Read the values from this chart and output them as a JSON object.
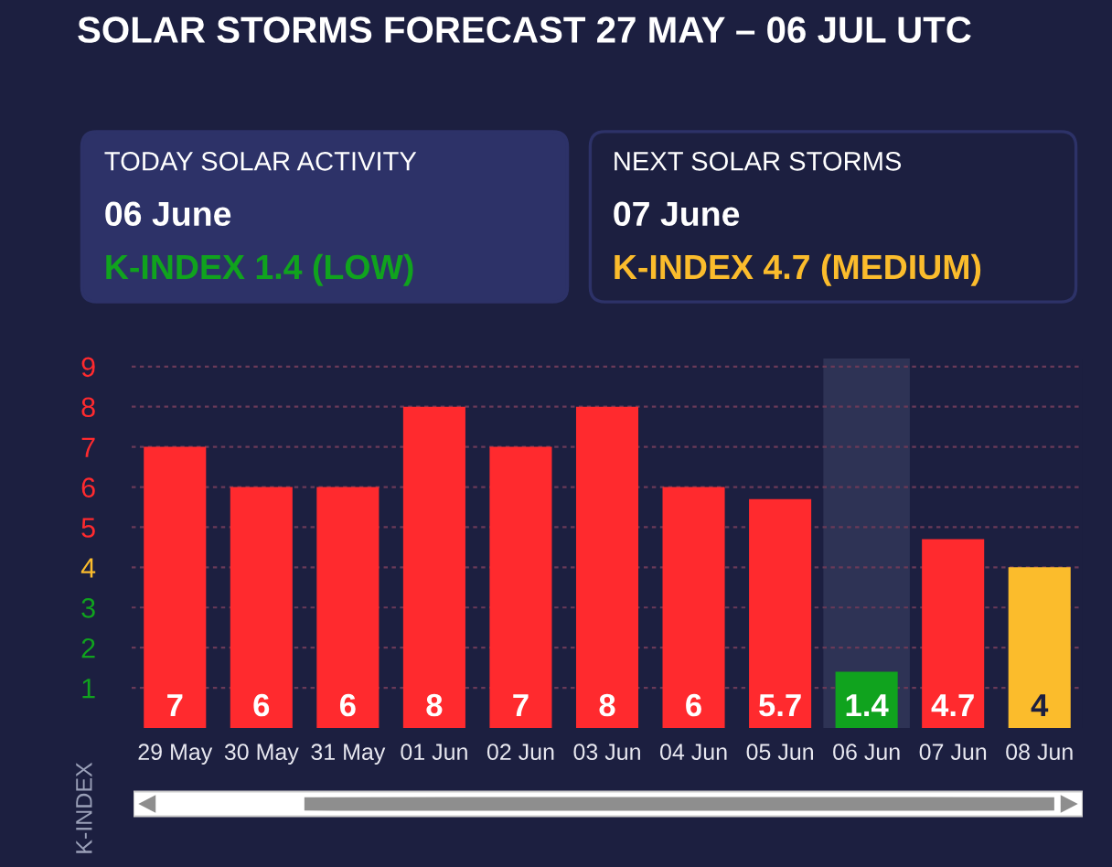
{
  "chart_data": [
    {
      "type": "other",
      "title": "TODAY SOLAR ACTIVITY",
      "color": "#10a31e",
      "annotations": [
        "06 June",
        "K-INDEX 1.4 (LOW)"
      ]
    },
    {
      "type": "other",
      "title": "NEXT SOLAR STORMS",
      "color": "#fbbc2c",
      "annotations": [
        "07 June",
        "K-INDEX 4.7 (MEDIUM)"
      ]
    },
    {
      "type": "bar",
      "title": "SOLAR STORMS FORECAST 27 MAY – 06 JUL UTC",
      "ylabel": "K-INDEX",
      "categories": [
        "29 May",
        "30 May",
        "31 May",
        "01 Jun",
        "02 Jun",
        "03 Jun",
        "04 Jun",
        "05 Jun",
        "06 Jun",
        "07 Jun",
        "08 Jun"
      ],
      "values": [
        7,
        6,
        6,
        8,
        7,
        8,
        6,
        5.7,
        1.4,
        4.7,
        4
      ],
      "colors": [
        "#ff2a2e",
        "#ff2a2e",
        "#ff2a2e",
        "#ff2a2e",
        "#ff2a2e",
        "#ff2a2e",
        "#ff2a2e",
        "#ff2a2e",
        "#10a31e",
        "#ff2a2e",
        "#fbbc2c"
      ],
      "data_labels": true,
      "ylim": [
        0,
        9.2
      ],
      "yticks": [
        1,
        2,
        3,
        4,
        5,
        6,
        7,
        8,
        9
      ],
      "bands": [
        {
          "axis": "x",
          "from": "06 Jun",
          "to": "06 Jun",
          "color": "#2e3355"
        }
      ],
      "grid": "y",
      "legend": false
    }
  ]
}
